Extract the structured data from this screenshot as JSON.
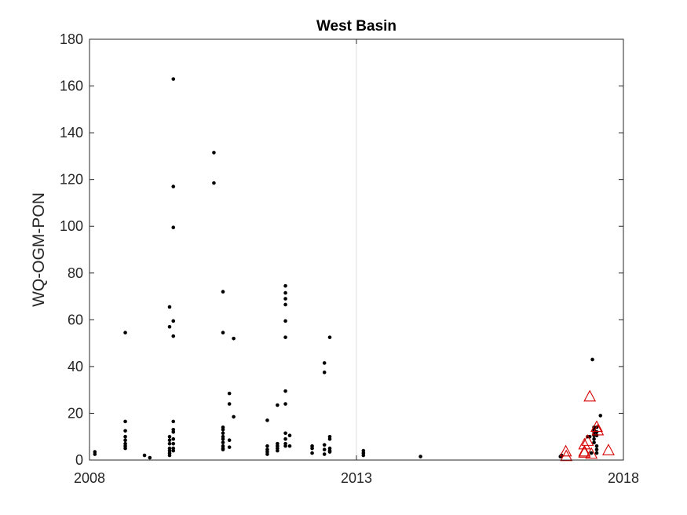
{
  "chart_data": {
    "type": "scatter",
    "title": "West Basin",
    "xlabel": "",
    "ylabel": "WQ-OGM-PON",
    "xlim": [
      2008,
      2018
    ],
    "ylim": [
      0,
      180
    ],
    "x_ticks": [
      2008,
      2013,
      2018
    ],
    "x_tick_labels": [
      "2008",
      "2013",
      "2018"
    ],
    "y_ticks": [
      0,
      20,
      40,
      60,
      80,
      100,
      120,
      140,
      160,
      180
    ],
    "y_tick_labels": [
      "0",
      "20",
      "40",
      "60",
      "80",
      "100",
      "120",
      "140",
      "160",
      "180"
    ],
    "grid": {
      "x": [
        2013
      ],
      "y": false
    },
    "legend": false,
    "colors": {
      "points": "#000000",
      "triangles": "#d50000",
      "grid": "#dcdcdc",
      "axis": "#262626"
    },
    "series": [
      {
        "marker": "dot",
        "color": "#000000",
        "points": [
          [
            2008.1,
            2.5
          ],
          [
            2008.1,
            3.5
          ],
          [
            2008.67,
            54.5
          ],
          [
            2008.67,
            16.5
          ],
          [
            2008.67,
            12.5
          ],
          [
            2008.67,
            10
          ],
          [
            2008.67,
            8.5
          ],
          [
            2008.67,
            7
          ],
          [
            2008.67,
            6
          ],
          [
            2008.67,
            5
          ],
          [
            2009.03,
            2
          ],
          [
            2009.13,
            1
          ],
          [
            2009.5,
            65.5
          ],
          [
            2009.5,
            57
          ],
          [
            2009.5,
            10
          ],
          [
            2009.5,
            8.5
          ],
          [
            2009.5,
            7
          ],
          [
            2009.5,
            5
          ],
          [
            2009.5,
            4
          ],
          [
            2009.5,
            3
          ],
          [
            2009.5,
            2
          ],
          [
            2009.57,
            163
          ],
          [
            2009.57,
            117
          ],
          [
            2009.57,
            99.5
          ],
          [
            2009.57,
            59.5
          ],
          [
            2009.57,
            53
          ],
          [
            2009.57,
            16.5
          ],
          [
            2009.57,
            13
          ],
          [
            2009.57,
            12
          ],
          [
            2009.57,
            9
          ],
          [
            2009.57,
            7
          ],
          [
            2009.57,
            5
          ],
          [
            2009.57,
            4
          ],
          [
            2010.33,
            131.5
          ],
          [
            2010.33,
            118.5
          ],
          [
            2010.5,
            72
          ],
          [
            2010.5,
            54.5
          ],
          [
            2010.5,
            14
          ],
          [
            2010.5,
            13
          ],
          [
            2010.5,
            11.5
          ],
          [
            2010.5,
            10
          ],
          [
            2010.5,
            9
          ],
          [
            2010.5,
            7.5
          ],
          [
            2010.5,
            6
          ],
          [
            2010.5,
            5
          ],
          [
            2010.5,
            4.5
          ],
          [
            2010.62,
            28.5
          ],
          [
            2010.62,
            24
          ],
          [
            2010.62,
            8.5
          ],
          [
            2010.62,
            5.5
          ],
          [
            2010.7,
            52
          ],
          [
            2010.7,
            18.5
          ],
          [
            2011.33,
            17
          ],
          [
            2011.33,
            6
          ],
          [
            2011.33,
            4.5
          ],
          [
            2011.33,
            3.5
          ],
          [
            2011.33,
            2.5
          ],
          [
            2011.52,
            23.5
          ],
          [
            2011.52,
            7
          ],
          [
            2011.52,
            6
          ],
          [
            2011.52,
            5
          ],
          [
            2011.52,
            4
          ],
          [
            2011.67,
            74.5
          ],
          [
            2011.67,
            71.5
          ],
          [
            2011.67,
            69
          ],
          [
            2011.67,
            66.5
          ],
          [
            2011.67,
            59.5
          ],
          [
            2011.67,
            52.5
          ],
          [
            2011.67,
            29.5
          ],
          [
            2011.67,
            24
          ],
          [
            2011.67,
            11.5
          ],
          [
            2011.67,
            9
          ],
          [
            2011.67,
            7
          ],
          [
            2011.67,
            6
          ],
          [
            2011.75,
            10.5
          ],
          [
            2011.75,
            6
          ],
          [
            2012.17,
            6
          ],
          [
            2012.17,
            5
          ],
          [
            2012.17,
            3
          ],
          [
            2012.4,
            41.5
          ],
          [
            2012.4,
            37.5
          ],
          [
            2012.4,
            6.5
          ],
          [
            2012.4,
            4.5
          ],
          [
            2012.4,
            2.5
          ],
          [
            2012.5,
            52.5
          ],
          [
            2012.5,
            10
          ],
          [
            2012.5,
            9
          ],
          [
            2012.5,
            5
          ],
          [
            2012.5,
            4
          ],
          [
            2012.5,
            3.5
          ],
          [
            2013.13,
            4
          ],
          [
            2013.13,
            3
          ],
          [
            2013.13,
            2
          ],
          [
            2014.2,
            1.5
          ],
          [
            2016.82,
            1.5
          ],
          [
            2016.84,
            2
          ],
          [
            2017.33,
            10
          ],
          [
            2017.37,
            10
          ],
          [
            2017.4,
            3
          ],
          [
            2017.42,
            43
          ],
          [
            2017.45,
            14
          ],
          [
            2017.45,
            13
          ],
          [
            2017.45,
            12.5
          ],
          [
            2017.45,
            11.5
          ],
          [
            2017.45,
            10.5
          ],
          [
            2017.45,
            9
          ],
          [
            2017.45,
            7.5
          ],
          [
            2017.5,
            14
          ],
          [
            2017.5,
            12
          ],
          [
            2017.5,
            10.5
          ],
          [
            2017.5,
            6
          ],
          [
            2017.5,
            4.5
          ],
          [
            2017.5,
            3
          ],
          [
            2017.57,
            19
          ]
        ]
      },
      {
        "marker": "triangle",
        "color": "#d50000",
        "points": [
          [
            2016.92,
            3.5
          ],
          [
            2016.93,
            1.5
          ],
          [
            2017.27,
            6.5
          ],
          [
            2017.27,
            3.5
          ],
          [
            2017.27,
            3
          ],
          [
            2017.33,
            8
          ],
          [
            2017.37,
            27
          ],
          [
            2017.4,
            2.5
          ],
          [
            2017.5,
            14
          ],
          [
            2017.52,
            12.5
          ],
          [
            2017.72,
            4
          ]
        ]
      }
    ]
  }
}
